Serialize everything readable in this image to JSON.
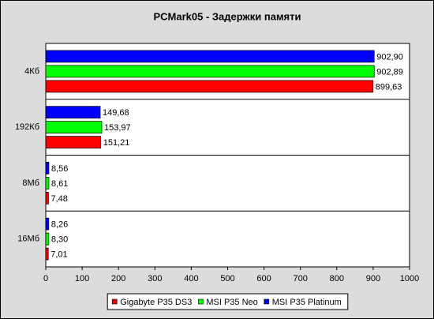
{
  "chart_data": {
    "type": "hbar",
    "title": "PCMark05 - Задержки памяти",
    "categories": [
      "4Кб",
      "192Кб",
      "8Мб",
      "16Мб"
    ],
    "series": [
      {
        "name": "Gigabyte P35 DS3",
        "color": "#ff0000",
        "values": [
          899.63,
          151.21,
          7.48,
          7.01
        ],
        "value_labels": [
          "899,63",
          "151,21",
          "7,48",
          "7,01"
        ]
      },
      {
        "name": "MSI P35 Neo",
        "color": "#00ff00",
        "values": [
          902.89,
          153.97,
          8.61,
          8.3
        ],
        "value_labels": [
          "902,89",
          "153,97",
          "8,61",
          "8,30"
        ]
      },
      {
        "name": "MSI P35 Platinum",
        "color": "#0000ff",
        "values": [
          902.9,
          149.68,
          8.56,
          8.26
        ],
        "value_labels": [
          "902,90",
          "149,68",
          "8,56",
          "8,26"
        ]
      }
    ],
    "xlim": [
      0,
      1000
    ],
    "xticks": [
      0,
      100,
      200,
      300,
      400,
      500,
      600,
      700,
      800,
      900,
      1000
    ],
    "legend": "bottom"
  }
}
